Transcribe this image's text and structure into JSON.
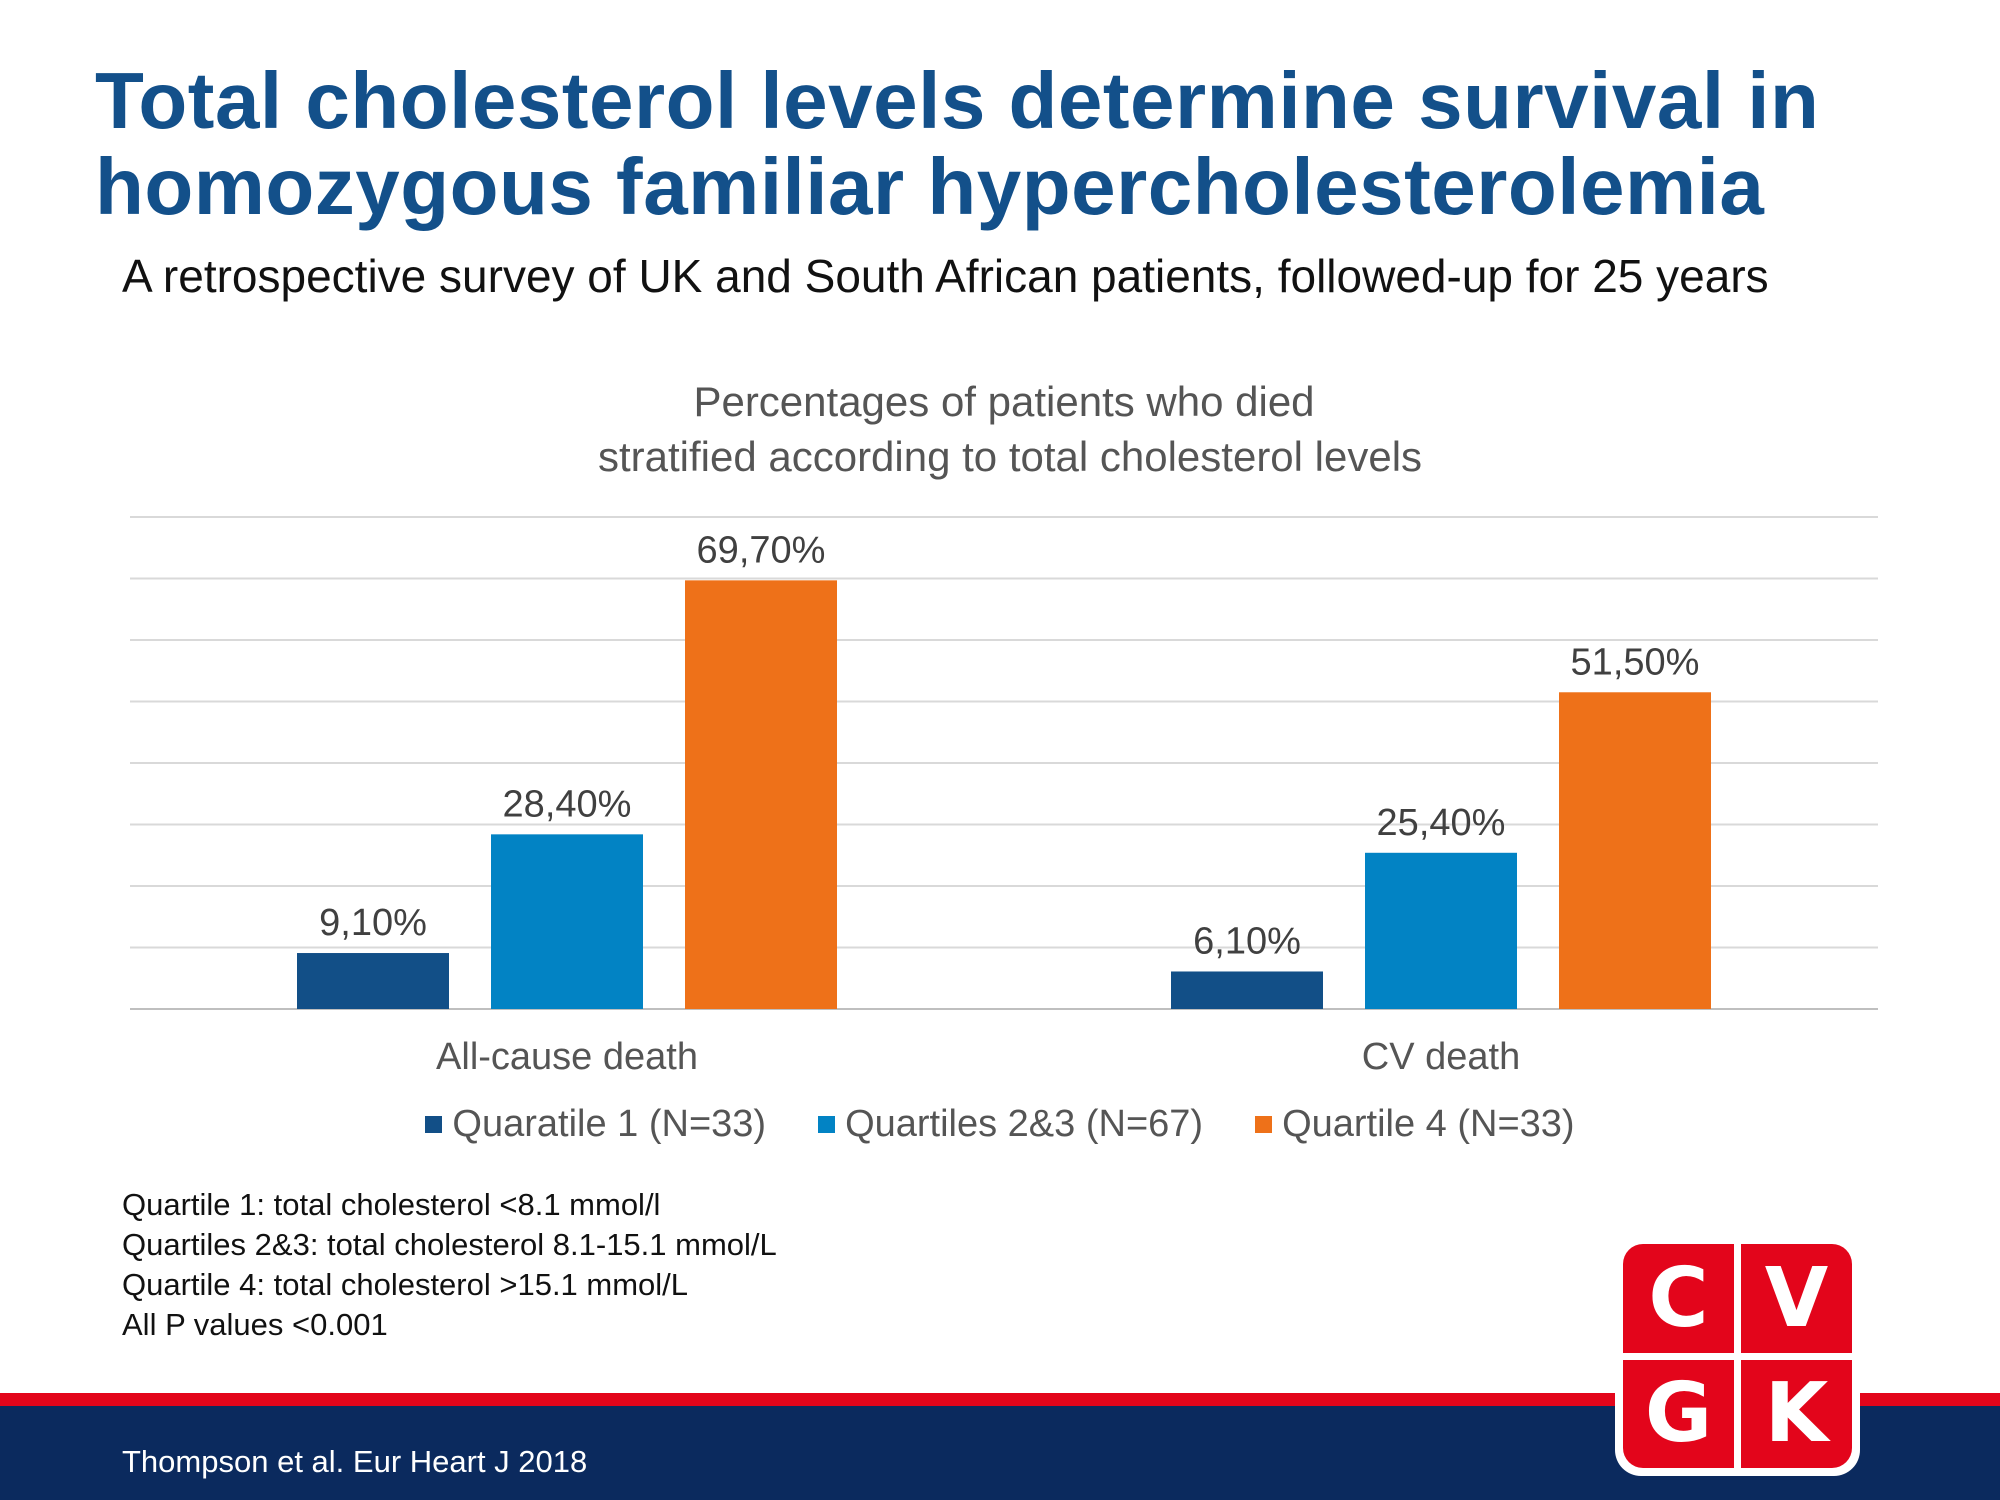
{
  "slide": {
    "title_line1": "Total cholesterol levels determine survival in",
    "title_line2": "homozygous familiar hypercholesterolemia",
    "subtitle": "A retrospective survey of UK and South African patients, followed-up for 25 years"
  },
  "chart_data": {
    "type": "bar",
    "title_line1": "Percentages of patients who died",
    "title_line2": "stratified according to total cholesterol levels",
    "categories": [
      "All-cause death",
      "CV death"
    ],
    "series": [
      {
        "name": "Quaratile 1 (N=33)",
        "color": "#124f87",
        "values": [
          9.1,
          6.1
        ],
        "labels": [
          "9,10%",
          "6,10%"
        ]
      },
      {
        "name": "Quartiles 2&3 (N=67)",
        "color": "#0283c4",
        "values": [
          28.4,
          25.4
        ],
        "labels": [
          "28,40%",
          "25,40%"
        ]
      },
      {
        "name": "Quartile 4 (N=33)",
        "color": "#ee7119",
        "values": [
          69.7,
          51.5
        ],
        "labels": [
          "69,70%",
          "51,50%"
        ]
      }
    ],
    "ylim": [
      0,
      80
    ],
    "grid": true,
    "legend_position": "bottom"
  },
  "footnotes": [
    "Quartile 1: total cholesterol <8.1 mmol/l",
    "Quartiles 2&3: total cholesterol 8.1-15.1 mmol/L",
    "Quartile 4: total cholesterol >15.1 mmol/L",
    "All P values <0.001"
  ],
  "citation": "Thompson et al. Eur Heart J 2018",
  "logo": {
    "letters": [
      "C",
      "V",
      "G",
      "K"
    ],
    "color": "#e3051b"
  },
  "footer": {
    "band_red": "#e3051b",
    "band_blue": "#0b2a5e"
  }
}
